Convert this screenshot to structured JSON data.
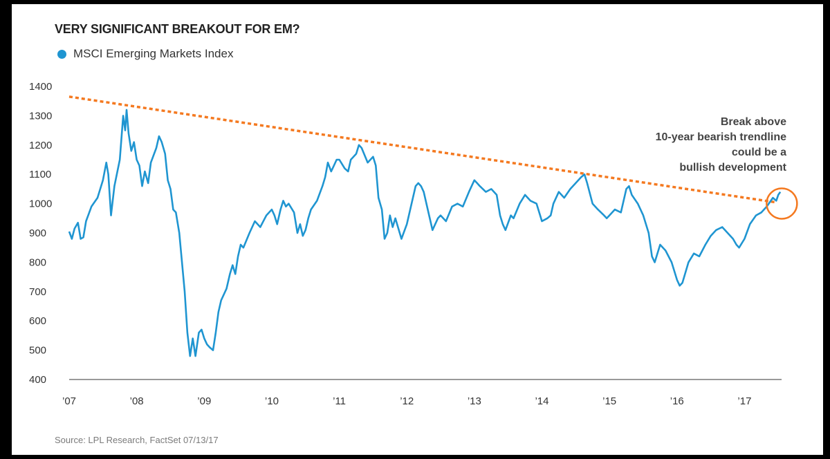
{
  "chart_data": {
    "type": "line",
    "title": "VERY SIGNIFICANT BREAKOUT FOR EM?",
    "legend": [
      {
        "label": "MSCI Emerging Markets Index",
        "color": "#1f95d1"
      }
    ],
    "source": "Source: LPL Research, FactSet   07/13/17",
    "xlabel": "",
    "ylabel": "",
    "ylim": [
      400,
      1400
    ],
    "yticks": [
      "1400",
      "1300",
      "1200",
      "1100",
      "1000",
      "900",
      "800",
      "700",
      "600",
      "500",
      "400"
    ],
    "xlim": [
      2007.0,
      2017.6
    ],
    "xticks": [
      {
        "label": "’07",
        "year": 2007
      },
      {
        "label": "’08",
        "year": 2008
      },
      {
        "label": "’09",
        "year": 2009
      },
      {
        "label": "’10",
        "year": 2010
      },
      {
        "label": "’11",
        "year": 2011
      },
      {
        "label": "’12",
        "year": 2012
      },
      {
        "label": "’13",
        "year": 2013
      },
      {
        "label": "’14",
        "year": 2014
      },
      {
        "label": "’15",
        "year": 2015
      },
      {
        "label": "’16",
        "year": 2016
      },
      {
        "label": "’17",
        "year": 2017
      }
    ],
    "grid": false,
    "series": [
      {
        "name": "MSCI Emerging Markets Index",
        "color": "#1f95d1",
        "points": [
          [
            2007.0,
            905
          ],
          [
            2007.04,
            880
          ],
          [
            2007.08,
            915
          ],
          [
            2007.13,
            935
          ],
          [
            2007.17,
            880
          ],
          [
            2007.21,
            885
          ],
          [
            2007.25,
            940
          ],
          [
            2007.33,
            990
          ],
          [
            2007.42,
            1020
          ],
          [
            2007.5,
            1080
          ],
          [
            2007.55,
            1140
          ],
          [
            2007.58,
            1100
          ],
          [
            2007.62,
            960
          ],
          [
            2007.67,
            1060
          ],
          [
            2007.75,
            1150
          ],
          [
            2007.8,
            1300
          ],
          [
            2007.83,
            1250
          ],
          [
            2007.85,
            1320
          ],
          [
            2007.88,
            1240
          ],
          [
            2007.92,
            1180
          ],
          [
            2007.96,
            1210
          ],
          [
            2008.0,
            1150
          ],
          [
            2008.04,
            1130
          ],
          [
            2008.08,
            1060
          ],
          [
            2008.12,
            1110
          ],
          [
            2008.17,
            1070
          ],
          [
            2008.21,
            1140
          ],
          [
            2008.29,
            1190
          ],
          [
            2008.33,
            1230
          ],
          [
            2008.37,
            1210
          ],
          [
            2008.42,
            1170
          ],
          [
            2008.46,
            1080
          ],
          [
            2008.5,
            1050
          ],
          [
            2008.54,
            980
          ],
          [
            2008.58,
            970
          ],
          [
            2008.63,
            900
          ],
          [
            2008.67,
            800
          ],
          [
            2008.71,
            700
          ],
          [
            2008.75,
            560
          ],
          [
            2008.79,
            480
          ],
          [
            2008.83,
            540
          ],
          [
            2008.87,
            480
          ],
          [
            2008.92,
            560
          ],
          [
            2008.96,
            570
          ],
          [
            2009.0,
            540
          ],
          [
            2009.04,
            520
          ],
          [
            2009.08,
            510
          ],
          [
            2009.13,
            500
          ],
          [
            2009.17,
            560
          ],
          [
            2009.21,
            630
          ],
          [
            2009.25,
            670
          ],
          [
            2009.33,
            710
          ],
          [
            2009.38,
            760
          ],
          [
            2009.42,
            790
          ],
          [
            2009.46,
            760
          ],
          [
            2009.5,
            820
          ],
          [
            2009.54,
            860
          ],
          [
            2009.58,
            850
          ],
          [
            2009.67,
            900
          ],
          [
            2009.75,
            940
          ],
          [
            2009.83,
            920
          ],
          [
            2009.92,
            960
          ],
          [
            2010.0,
            980
          ],
          [
            2010.04,
            960
          ],
          [
            2010.08,
            930
          ],
          [
            2010.13,
            980
          ],
          [
            2010.17,
            1010
          ],
          [
            2010.21,
            990
          ],
          [
            2010.25,
            1000
          ],
          [
            2010.33,
            970
          ],
          [
            2010.38,
            900
          ],
          [
            2010.42,
            930
          ],
          [
            2010.46,
            890
          ],
          [
            2010.5,
            910
          ],
          [
            2010.54,
            950
          ],
          [
            2010.58,
            980
          ],
          [
            2010.67,
            1010
          ],
          [
            2010.75,
            1060
          ],
          [
            2010.79,
            1090
          ],
          [
            2010.83,
            1140
          ],
          [
            2010.88,
            1110
          ],
          [
            2010.92,
            1130
          ],
          [
            2010.96,
            1150
          ],
          [
            2011.0,
            1150
          ],
          [
            2011.08,
            1120
          ],
          [
            2011.13,
            1110
          ],
          [
            2011.17,
            1150
          ],
          [
            2011.25,
            1170
          ],
          [
            2011.29,
            1200
          ],
          [
            2011.33,
            1190
          ],
          [
            2011.42,
            1140
          ],
          [
            2011.5,
            1160
          ],
          [
            2011.54,
            1130
          ],
          [
            2011.58,
            1020
          ],
          [
            2011.63,
            980
          ],
          [
            2011.67,
            880
          ],
          [
            2011.71,
            900
          ],
          [
            2011.75,
            960
          ],
          [
            2011.79,
            920
          ],
          [
            2011.83,
            950
          ],
          [
            2011.92,
            880
          ],
          [
            2012.0,
            930
          ],
          [
            2012.08,
            1010
          ],
          [
            2012.13,
            1060
          ],
          [
            2012.17,
            1070
          ],
          [
            2012.21,
            1060
          ],
          [
            2012.25,
            1040
          ],
          [
            2012.33,
            960
          ],
          [
            2012.38,
            910
          ],
          [
            2012.42,
            930
          ],
          [
            2012.46,
            950
          ],
          [
            2012.5,
            960
          ],
          [
            2012.58,
            940
          ],
          [
            2012.67,
            990
          ],
          [
            2012.75,
            1000
          ],
          [
            2012.83,
            990
          ],
          [
            2012.92,
            1040
          ],
          [
            2013.0,
            1080
          ],
          [
            2013.04,
            1070
          ],
          [
            2013.08,
            1060
          ],
          [
            2013.17,
            1040
          ],
          [
            2013.25,
            1050
          ],
          [
            2013.33,
            1030
          ],
          [
            2013.38,
            960
          ],
          [
            2013.42,
            930
          ],
          [
            2013.46,
            910
          ],
          [
            2013.54,
            960
          ],
          [
            2013.58,
            950
          ],
          [
            2013.67,
            1000
          ],
          [
            2013.75,
            1030
          ],
          [
            2013.83,
            1010
          ],
          [
            2013.92,
            1000
          ],
          [
            2014.0,
            940
          ],
          [
            2014.08,
            950
          ],
          [
            2014.13,
            960
          ],
          [
            2014.17,
            1000
          ],
          [
            2014.25,
            1040
          ],
          [
            2014.33,
            1020
          ],
          [
            2014.42,
            1050
          ],
          [
            2014.5,
            1070
          ],
          [
            2014.58,
            1090
          ],
          [
            2014.63,
            1100
          ],
          [
            2014.67,
            1070
          ],
          [
            2014.75,
            1000
          ],
          [
            2014.83,
            980
          ],
          [
            2014.92,
            960
          ],
          [
            2014.96,
            950
          ],
          [
            2015.0,
            960
          ],
          [
            2015.08,
            980
          ],
          [
            2015.17,
            970
          ],
          [
            2015.25,
            1050
          ],
          [
            2015.29,
            1060
          ],
          [
            2015.33,
            1030
          ],
          [
            2015.42,
            1000
          ],
          [
            2015.5,
            960
          ],
          [
            2015.58,
            900
          ],
          [
            2015.63,
            820
          ],
          [
            2015.67,
            800
          ],
          [
            2015.75,
            860
          ],
          [
            2015.83,
            840
          ],
          [
            2015.92,
            800
          ],
          [
            2016.0,
            740
          ],
          [
            2016.04,
            720
          ],
          [
            2016.08,
            730
          ],
          [
            2016.17,
            800
          ],
          [
            2016.25,
            830
          ],
          [
            2016.33,
            820
          ],
          [
            2016.42,
            860
          ],
          [
            2016.5,
            890
          ],
          [
            2016.58,
            910
          ],
          [
            2016.67,
            920
          ],
          [
            2016.75,
            900
          ],
          [
            2016.83,
            880
          ],
          [
            2016.88,
            860
          ],
          [
            2016.92,
            850
          ],
          [
            2017.0,
            880
          ],
          [
            2017.08,
            930
          ],
          [
            2017.17,
            960
          ],
          [
            2017.25,
            970
          ],
          [
            2017.33,
            990
          ],
          [
            2017.42,
            1020
          ],
          [
            2017.47,
            1010
          ],
          [
            2017.5,
            1030
          ],
          [
            2017.53,
            1040
          ]
        ]
      }
    ],
    "trendline": {
      "color": "#f47920",
      "from": [
        2007.0,
        1365
      ],
      "to": [
        2017.45,
        1005
      ]
    },
    "highlight": {
      "color": "#f47920",
      "center": [
        2017.45,
        1005
      ]
    },
    "annotation": [
      "Break above",
      "10-year bearish trendline",
      "could be a",
      "bullish development"
    ]
  }
}
